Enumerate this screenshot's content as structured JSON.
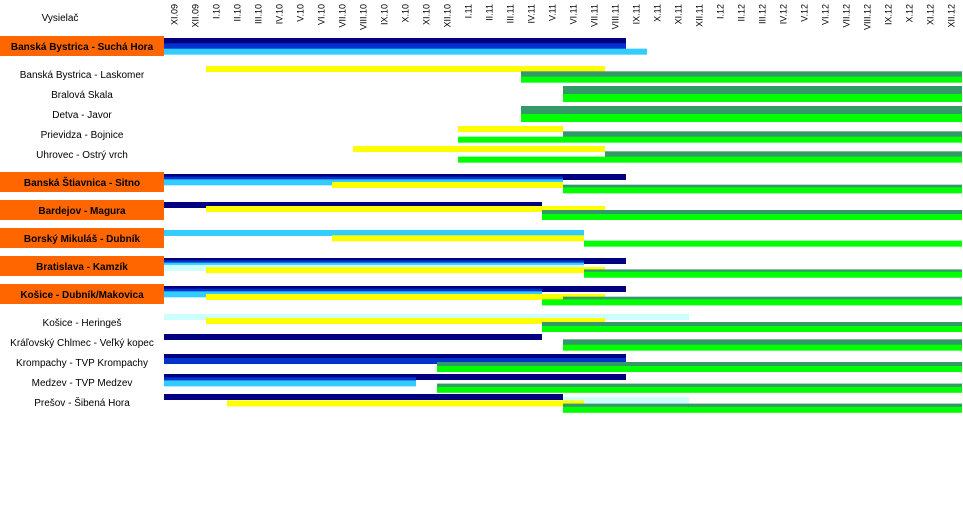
{
  "chart_data": {
    "type": "gantt",
    "header_label": "Vysielač",
    "months": [
      "XI.09",
      "XII.09",
      "I.10",
      "II.10",
      "III.10",
      "IV.10",
      "V.10",
      "VI.10",
      "VII.10",
      "VIII.10",
      "IX.10",
      "X.10",
      "XI.10",
      "XII.10",
      "I.11",
      "II.11",
      "III.11",
      "IV.11",
      "V.11",
      "VI.11",
      "VII.11",
      "VIII.11",
      "IX.11",
      "X.11",
      "XI.11",
      "XII.11",
      "I.12",
      "II.12",
      "III.12",
      "IV.12",
      "V.12",
      "VI.12",
      "VII.12",
      "VIII.12",
      "IX.12",
      "X.12",
      "XI.12",
      "XII.12"
    ],
    "colors": {
      "navy": "#000080",
      "blue": "#0033cc",
      "cyan": "#33ccff",
      "lightcyan": "#ccffff",
      "yellow": "#ffff00",
      "darkgreen": "#339966",
      "green": "#00ff00",
      "highlight": "#ff6600"
    },
    "groups": [
      {
        "name": "Banská Bystrica - Suchá Hora",
        "highlight": true,
        "rows": [
          {
            "label": "Banská Bystrica - Suchá Hora",
            "bars": [
              {
                "color": "navy",
                "start": "XI.09",
                "end": "VIII.11"
              },
              {
                "color": "blue",
                "start": "XI.09",
                "end": "VIII.11"
              },
              {
                "color": "cyan",
                "start": "XI.09",
                "end": "IX.11"
              }
            ]
          }
        ]
      },
      {
        "name": "",
        "highlight": false,
        "rows": [
          {
            "label": "Banská Bystrica - Laskomer",
            "bars": [
              {
                "color": "yellow",
                "start": "I.10",
                "end": "VII.11"
              },
              {
                "color": "darkgreen",
                "start": "IV.11",
                "end": "XII.12"
              },
              {
                "color": "green",
                "start": "IV.11",
                "end": "XII.12"
              }
            ]
          },
          {
            "label": "Bralová Skala",
            "bars": [
              {
                "color": "darkgreen",
                "start": "VI.11",
                "end": "XII.12"
              },
              {
                "color": "green",
                "start": "VI.11",
                "end": "XII.12"
              }
            ]
          },
          {
            "label": "Detva - Javor",
            "bars": [
              {
                "color": "darkgreen",
                "start": "IV.11",
                "end": "XII.12"
              },
              {
                "color": "green",
                "start": "IV.11",
                "end": "XII.12"
              }
            ]
          },
          {
            "label": "Prievidza - Bojnice",
            "bars": [
              {
                "color": "yellow",
                "start": "I.11",
                "end": "V.11"
              },
              {
                "color": "darkgreen",
                "start": "VI.11",
                "end": "XII.12"
              },
              {
                "color": "green",
                "start": "I.11",
                "end": "XII.12"
              }
            ]
          },
          {
            "label": "Uhrovec - Ostrý vrch",
            "bars": [
              {
                "color": "yellow",
                "start": "VIII.10",
                "end": "VII.11"
              },
              {
                "color": "darkgreen",
                "start": "VIII.11",
                "end": "XII.12"
              },
              {
                "color": "green",
                "start": "I.11",
                "end": "XII.12"
              }
            ]
          }
        ]
      },
      {
        "name": "Banská Štiavnica - Sitno",
        "highlight": true,
        "rows": [
          {
            "label": "Banská Štiavnica - Sitno",
            "bars": [
              {
                "color": "navy",
                "start": "XI.09",
                "end": "VIII.11"
              },
              {
                "color": "blue",
                "start": "XI.09",
                "end": "V.11"
              },
              {
                "color": "cyan",
                "start": "XI.09",
                "end": "V.11"
              },
              {
                "color": "yellow",
                "start": "VII.10",
                "end": "V.11"
              },
              {
                "color": "darkgreen",
                "start": "VI.11",
                "end": "XII.12"
              },
              {
                "color": "green",
                "start": "VI.11",
                "end": "XII.12"
              }
            ]
          }
        ]
      },
      {
        "name": "Bardejov - Magura",
        "highlight": true,
        "rows": [
          {
            "label": "Bardejov - Magura",
            "bars": [
              {
                "color": "navy",
                "start": "XI.09",
                "end": "IV.11"
              },
              {
                "color": "yellow",
                "start": "I.10",
                "end": "VII.11"
              },
              {
                "color": "darkgreen",
                "start": "V.11",
                "end": "XII.12"
              },
              {
                "color": "green",
                "start": "V.11",
                "end": "XII.12"
              }
            ]
          }
        ]
      },
      {
        "name": "Borský Mikuláš - Dubník",
        "highlight": true,
        "rows": [
          {
            "label": "Borský Mikuláš - Dubník",
            "bars": [
              {
                "color": "cyan",
                "start": "XI.09",
                "end": "VI.11"
              },
              {
                "color": "yellow",
                "start": "VII.10",
                "end": "VI.11"
              },
              {
                "color": "green",
                "start": "VII.11",
                "end": "XII.12"
              }
            ]
          }
        ]
      },
      {
        "name": "Bratislava - Kamzík",
        "highlight": true,
        "rows": [
          {
            "label": "Bratislava - Kamzík",
            "bars": [
              {
                "color": "navy",
                "start": "XI.09",
                "end": "VIII.11"
              },
              {
                "color": "blue",
                "start": "XI.09",
                "end": "VI.11"
              },
              {
                "color": "cyan",
                "start": "XI.09",
                "end": "VI.11"
              },
              {
                "color": "lightcyan",
                "start": "XI.09",
                "end": "VI.11"
              },
              {
                "color": "yellow",
                "start": "I.10",
                "end": "VII.11"
              },
              {
                "color": "darkgreen",
                "start": "VII.11",
                "end": "XII.12"
              },
              {
                "color": "green",
                "start": "VII.11",
                "end": "XII.12"
              }
            ]
          }
        ]
      },
      {
        "name": "Košice - Dubník/Makovica",
        "highlight": true,
        "rows": [
          {
            "label": "Košice - Dubník/Makovica",
            "bars": [
              {
                "color": "navy",
                "start": "XI.09",
                "end": "VIII.11"
              },
              {
                "color": "blue",
                "start": "XI.09",
                "end": "IV.11"
              },
              {
                "color": "cyan",
                "start": "XI.09",
                "end": "IV.11"
              },
              {
                "color": "yellow",
                "start": "I.10",
                "end": "VII.11"
              },
              {
                "color": "darkgreen",
                "start": "VI.11",
                "end": "XII.12"
              },
              {
                "color": "green",
                "start": "V.11",
                "end": "XII.12"
              }
            ]
          }
        ]
      },
      {
        "name": "",
        "highlight": false,
        "rows": [
          {
            "label": "Košice - Heringeš",
            "bars": [
              {
                "color": "lightcyan",
                "start": "XI.09",
                "end": "XI.11"
              },
              {
                "color": "yellow",
                "start": "I.10",
                "end": "VII.11"
              },
              {
                "color": "darkgreen",
                "start": "V.11",
                "end": "XII.12"
              },
              {
                "color": "green",
                "start": "V.11",
                "end": "XII.12"
              }
            ]
          },
          {
            "label": "Kráľovský Chlmec - Veľký kopec",
            "bars": [
              {
                "color": "navy",
                "start": "XI.09",
                "end": "IV.11"
              },
              {
                "color": "darkgreen",
                "start": "VI.11",
                "end": "XII.12"
              },
              {
                "color": "green",
                "start": "VI.11",
                "end": "XII.12"
              }
            ]
          },
          {
            "label": "Krompachy - TVP Krompachy",
            "bars": [
              {
                "color": "navy",
                "start": "XI.09",
                "end": "VIII.11"
              },
              {
                "color": "blue",
                "start": "XI.09",
                "end": "VIII.11"
              },
              {
                "color": "darkgreen",
                "start": "XII.10",
                "end": "XII.12"
              },
              {
                "color": "green",
                "start": "XII.10",
                "end": "XII.12"
              }
            ]
          },
          {
            "label": "Medzev - TVP Medzev",
            "bars": [
              {
                "color": "navy",
                "start": "XI.09",
                "end": "VIII.11"
              },
              {
                "color": "blue",
                "start": "XI.09",
                "end": "X.10"
              },
              {
                "color": "cyan",
                "start": "XI.09",
                "end": "X.10"
              },
              {
                "color": "darkgreen",
                "start": "XII.10",
                "end": "XII.12"
              },
              {
                "color": "green",
                "start": "XII.10",
                "end": "XII.12"
              }
            ]
          },
          {
            "label": "Prešov - Šibená Hora",
            "bars": [
              {
                "color": "navy",
                "start": "XI.09",
                "end": "V.11"
              },
              {
                "color": "lightcyan",
                "start": "VI.11",
                "end": "XI.11"
              },
              {
                "color": "yellow",
                "start": "II.10",
                "end": "VI.11"
              },
              {
                "color": "darkgreen",
                "start": "VI.11",
                "end": "XII.12"
              },
              {
                "color": "green",
                "start": "VI.11",
                "end": "XII.12"
              }
            ]
          }
        ]
      }
    ]
  }
}
